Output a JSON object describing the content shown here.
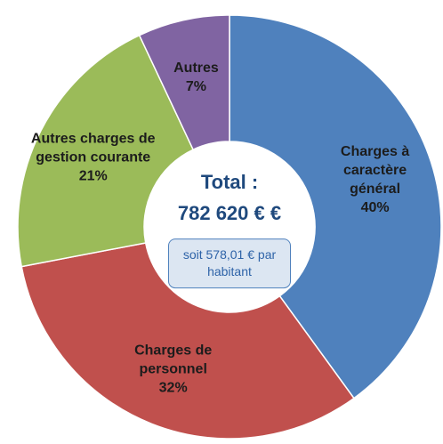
{
  "chart_data": {
    "type": "donut",
    "categories": [
      "Charges à caractère général",
      "Charges de personnel",
      "Autres charges de gestion courante",
      "Autres"
    ],
    "values": [
      40,
      32,
      21,
      7
    ],
    "value_labels": [
      "40%",
      "32%",
      "21%",
      "7%"
    ],
    "colors": [
      "#4f81bd",
      "#c0504d",
      "#9bbb59",
      "#8064a2"
    ],
    "center": {
      "title": "Total :",
      "total": "782 620 € €",
      "note": "soit 578,01 € par habitant"
    }
  }
}
